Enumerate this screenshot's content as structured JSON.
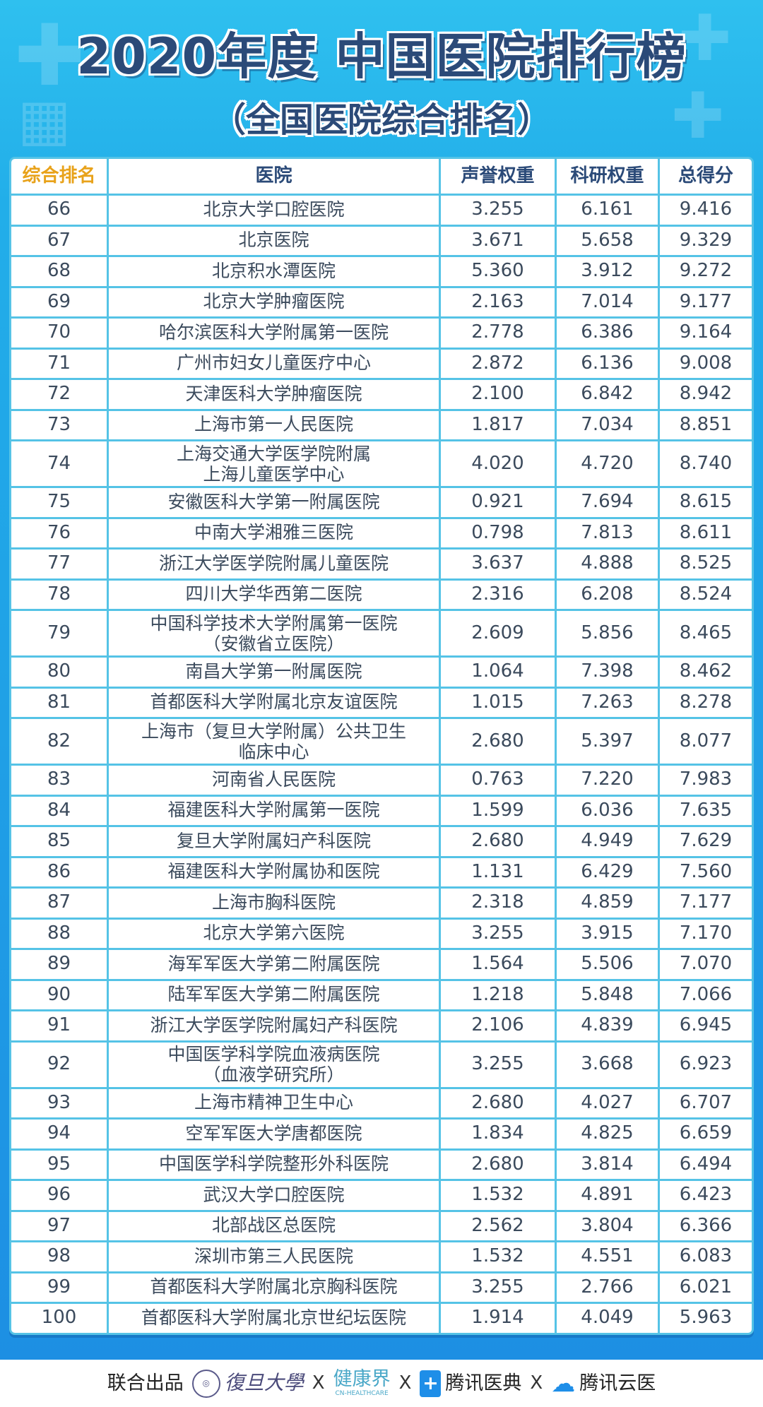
{
  "title": "2020年度 中国医院排行榜",
  "subtitle": "（全国医院综合排名）",
  "colors": {
    "title": "#2b4a78",
    "rank_header": "#e8a21a",
    "border": "#55c3e6",
    "background": "#22aee9"
  },
  "table": {
    "headers": [
      "综合排名",
      "医院",
      "声誉权重",
      "科研权重",
      "总得分"
    ],
    "rows": [
      {
        "rank": "66",
        "hospital": "北京大学口腔医院",
        "reputation": "3.255",
        "research": "6.161",
        "total": "9.416"
      },
      {
        "rank": "67",
        "hospital": "北京医院",
        "reputation": "3.671",
        "research": "5.658",
        "total": "9.329"
      },
      {
        "rank": "68",
        "hospital": "北京积水潭医院",
        "reputation": "5.360",
        "research": "3.912",
        "total": "9.272"
      },
      {
        "rank": "69",
        "hospital": "北京大学肿瘤医院",
        "reputation": "2.163",
        "research": "7.014",
        "total": "9.177"
      },
      {
        "rank": "70",
        "hospital": "哈尔滨医科大学附属第一医院",
        "reputation": "2.778",
        "research": "6.386",
        "total": "9.164"
      },
      {
        "rank": "71",
        "hospital": "广州市妇女儿童医疗中心",
        "reputation": "2.872",
        "research": "6.136",
        "total": "9.008"
      },
      {
        "rank": "72",
        "hospital": "天津医科大学肿瘤医院",
        "reputation": "2.100",
        "research": "6.842",
        "total": "8.942"
      },
      {
        "rank": "73",
        "hospital": "上海市第一人民医院",
        "reputation": "1.817",
        "research": "7.034",
        "total": "8.851"
      },
      {
        "rank": "74",
        "hospital": "上海交通大学医学院附属\n上海儿童医学中心",
        "reputation": "4.020",
        "research": "4.720",
        "total": "8.740"
      },
      {
        "rank": "75",
        "hospital": "安徽医科大学第一附属医院",
        "reputation": "0.921",
        "research": "7.694",
        "total": "8.615"
      },
      {
        "rank": "76",
        "hospital": "中南大学湘雅三医院",
        "reputation": "0.798",
        "research": "7.813",
        "total": "8.611"
      },
      {
        "rank": "77",
        "hospital": "浙江大学医学院附属儿童医院",
        "reputation": "3.637",
        "research": "4.888",
        "total": "8.525"
      },
      {
        "rank": "78",
        "hospital": "四川大学华西第二医院",
        "reputation": "2.316",
        "research": "6.208",
        "total": "8.524"
      },
      {
        "rank": "79",
        "hospital": "中国科学技术大学附属第一医院\n（安徽省立医院）",
        "reputation": "2.609",
        "research": "5.856",
        "total": "8.465"
      },
      {
        "rank": "80",
        "hospital": "南昌大学第一附属医院",
        "reputation": "1.064",
        "research": "7.398",
        "total": "8.462"
      },
      {
        "rank": "81",
        "hospital": "首都医科大学附属北京友谊医院",
        "reputation": "1.015",
        "research": "7.263",
        "total": "8.278"
      },
      {
        "rank": "82",
        "hospital": "上海市（复旦大学附属）公共卫生\n临床中心",
        "reputation": "2.680",
        "research": "5.397",
        "total": "8.077"
      },
      {
        "rank": "83",
        "hospital": "河南省人民医院",
        "reputation": "0.763",
        "research": "7.220",
        "total": "7.983"
      },
      {
        "rank": "84",
        "hospital": "福建医科大学附属第一医院",
        "reputation": "1.599",
        "research": "6.036",
        "total": "7.635"
      },
      {
        "rank": "85",
        "hospital": "复旦大学附属妇产科医院",
        "reputation": "2.680",
        "research": "4.949",
        "total": "7.629"
      },
      {
        "rank": "86",
        "hospital": "福建医科大学附属协和医院",
        "reputation": "1.131",
        "research": "6.429",
        "total": "7.560"
      },
      {
        "rank": "87",
        "hospital": "上海市胸科医院",
        "reputation": "2.318",
        "research": "4.859",
        "total": "7.177"
      },
      {
        "rank": "88",
        "hospital": "北京大学第六医院",
        "reputation": "3.255",
        "research": "3.915",
        "total": "7.170"
      },
      {
        "rank": "89",
        "hospital": "海军军医大学第二附属医院",
        "reputation": "1.564",
        "research": "5.506",
        "total": "7.070"
      },
      {
        "rank": "90",
        "hospital": "陆军军医大学第二附属医院",
        "reputation": "1.218",
        "research": "5.848",
        "total": "7.066"
      },
      {
        "rank": "91",
        "hospital": "浙江大学医学院附属妇产科医院",
        "reputation": "2.106",
        "research": "4.839",
        "total": "6.945"
      },
      {
        "rank": "92",
        "hospital": "中国医学科学院血液病医院\n（血液学研究所）",
        "reputation": "3.255",
        "research": "3.668",
        "total": "6.923"
      },
      {
        "rank": "93",
        "hospital": "上海市精神卫生中心",
        "reputation": "2.680",
        "research": "4.027",
        "total": "6.707"
      },
      {
        "rank": "94",
        "hospital": "空军军医大学唐都医院",
        "reputation": "1.834",
        "research": "4.825",
        "total": "6.659"
      },
      {
        "rank": "95",
        "hospital": "中国医学科学院整形外科医院",
        "reputation": "2.680",
        "research": "3.814",
        "total": "6.494"
      },
      {
        "rank": "96",
        "hospital": "武汉大学口腔医院",
        "reputation": "1.532",
        "research": "4.891",
        "total": "6.423"
      },
      {
        "rank": "97",
        "hospital": "北部战区总医院",
        "reputation": "2.562",
        "research": "3.804",
        "total": "6.366"
      },
      {
        "rank": "98",
        "hospital": "深圳市第三人民医院",
        "reputation": "1.532",
        "research": "4.551",
        "total": "6.083"
      },
      {
        "rank": "99",
        "hospital": "首都医科大学附属北京胸科医院",
        "reputation": "3.255",
        "research": "2.766",
        "total": "6.021"
      },
      {
        "rank": "100",
        "hospital": "首都医科大学附属北京世纪坛医院",
        "reputation": "1.914",
        "research": "4.049",
        "total": "5.963"
      }
    ]
  },
  "footer": {
    "label": "联合出品",
    "partners": [
      "復旦大學",
      "健康界",
      "腾讯医典",
      "腾讯云医"
    ],
    "partner_subtext": "CN-HEALTHCARE",
    "separator": "X",
    "icons": [
      "fudan-seal-icon",
      "tencent-yidian-book-icon",
      "tencent-cloud-icon"
    ]
  }
}
